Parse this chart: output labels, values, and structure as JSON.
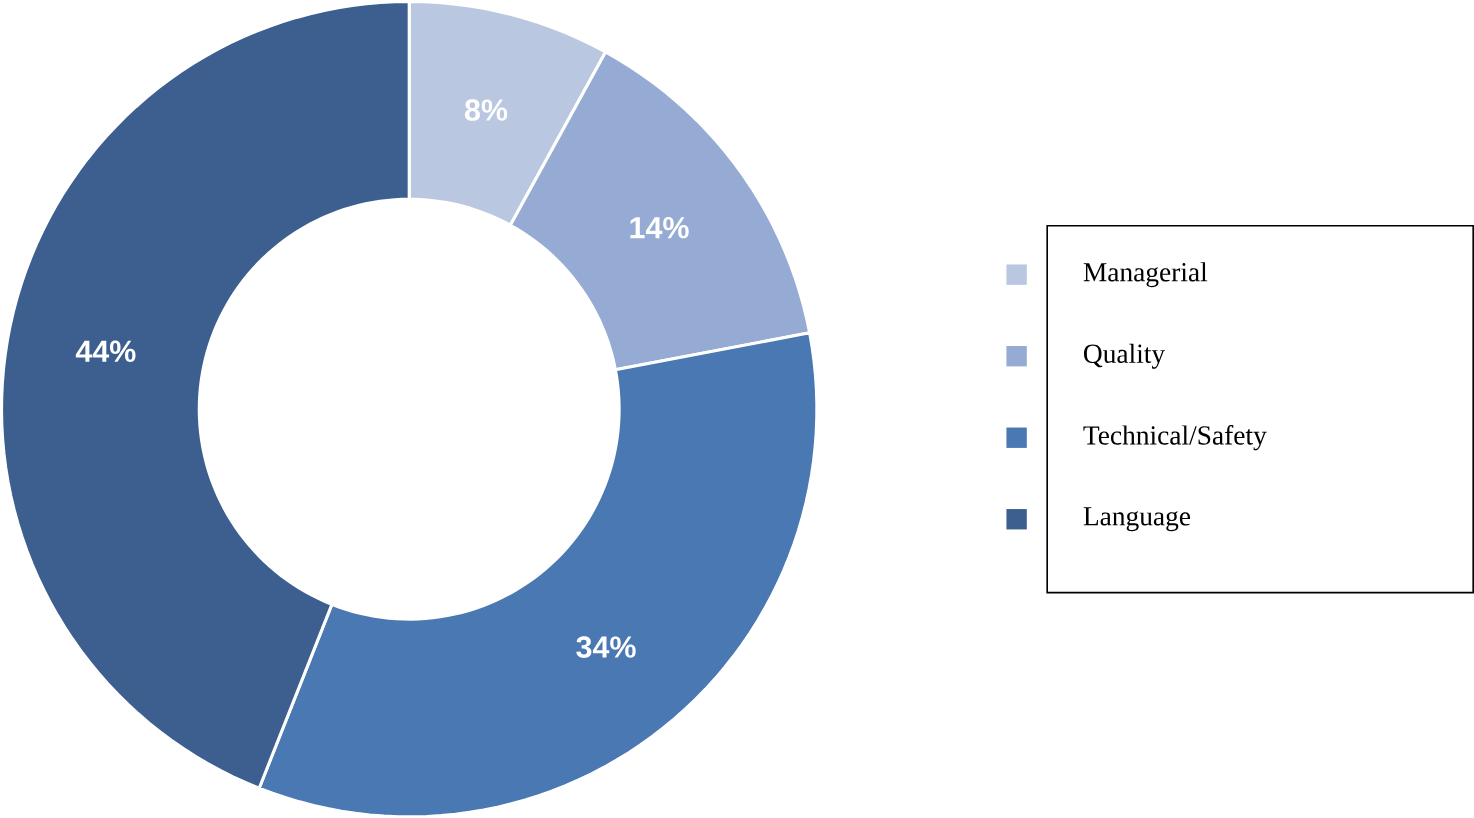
{
  "chart_data": {
    "type": "donut",
    "categories": [
      "Managerial",
      "Quality",
      "Technical/Safety",
      "Language"
    ],
    "values": [
      8,
      14,
      34,
      44
    ],
    "colors": [
      "#b9c7e0",
      "#95abd3",
      "#4a78b2",
      "#3c5f8f"
    ],
    "value_labels": [
      "8%",
      "14%",
      "34%",
      "44%"
    ],
    "legend": "right"
  }
}
